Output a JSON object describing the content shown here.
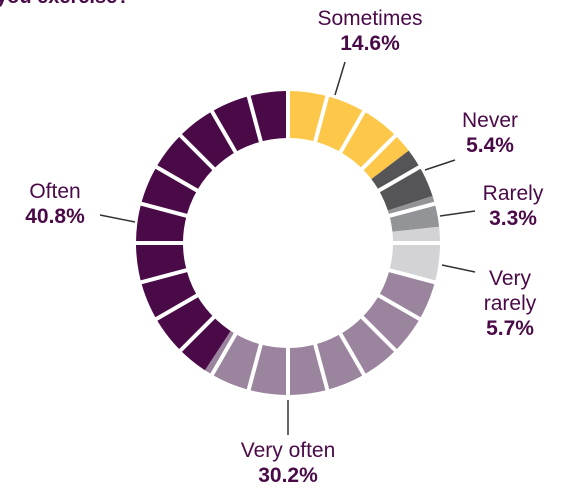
{
  "chart_data": {
    "type": "donut",
    "title": "you exercise?",
    "categories": [
      "Sometimes",
      "Never",
      "Rarely",
      "Very rarely",
      "Very often",
      "Often"
    ],
    "values": [
      14.6,
      5.4,
      3.3,
      5.7,
      30.2,
      40.8
    ],
    "value_labels": [
      "14.6%",
      "5.4%",
      "3.3%",
      "5.7%",
      "30.2%",
      "40.8%"
    ],
    "colors": [
      "#fdc84a",
      "#555558",
      "#929497",
      "#d3d3d5",
      "#9b849e",
      "#4a0a48"
    ]
  }
}
